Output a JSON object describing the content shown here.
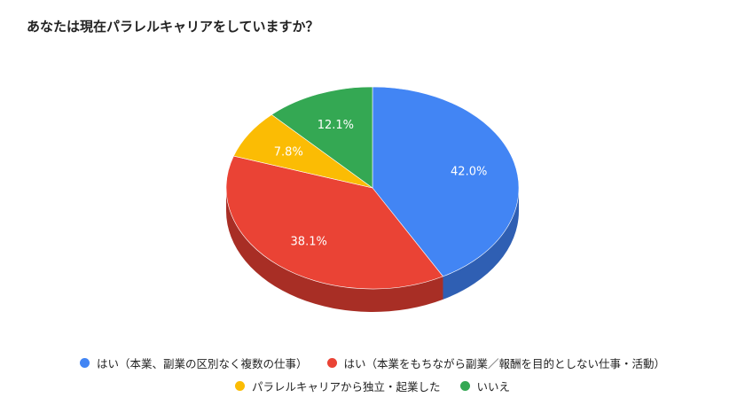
{
  "chart_data": {
    "type": "pie",
    "title": "あなたは現在パラレルキャリアをしていますか？",
    "series": [
      {
        "name": "はい（本業、副業の区別なく複数の仕事）",
        "value": 42.0,
        "label": "42.0%",
        "color": "#4285f4",
        "side_color": "#2f5fb3"
      },
      {
        "name": "はい（本業をもちながら副業／報酬を目的としない仕事・活動）",
        "value": 38.1,
        "label": "38.1%",
        "color": "#ea4335",
        "side_color": "#a82e25"
      },
      {
        "name": "パラレルキャリアから独立・起業した",
        "value": 7.8,
        "label": "7.8%",
        "color": "#fbbc04",
        "side_color": "#b38603"
      },
      {
        "name": "いいえ",
        "value": 12.1,
        "label": "12.1%",
        "color": "#34a853",
        "side_color": "#24783a"
      }
    ],
    "legend_placement": "bottom",
    "style": "3d"
  }
}
